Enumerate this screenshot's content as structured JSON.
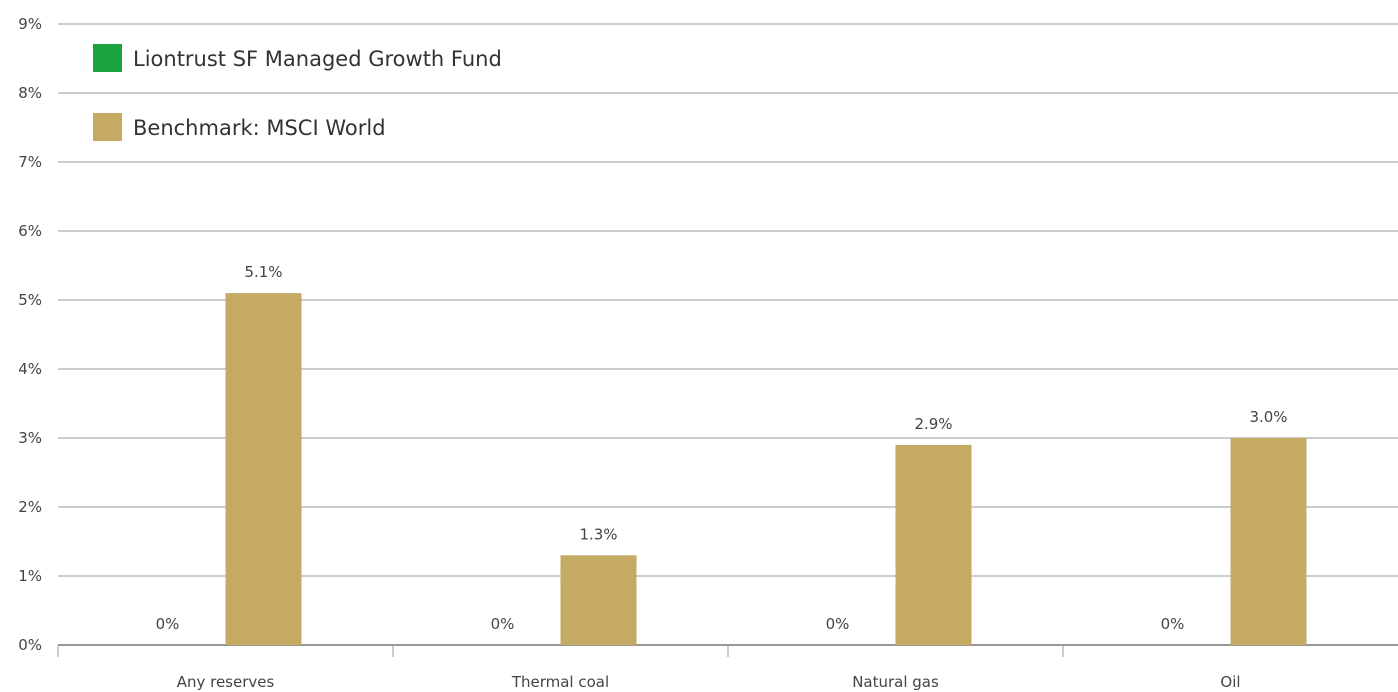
{
  "chart_data": {
    "type": "bar",
    "categories": [
      "Any reserves",
      "Thermal coal",
      "Natural gas",
      "Oil"
    ],
    "series": [
      {
        "name": "Liontrust SF Managed Growth Fund",
        "color": "#1aa33f",
        "values": [
          0,
          0,
          0,
          0
        ],
        "labels": [
          "0%",
          "0%",
          "0%",
          "0%"
        ]
      },
      {
        "name": "Benchmark: MSCI World",
        "color": "#c4aa62",
        "values": [
          5.1,
          1.3,
          2.9,
          3.0
        ],
        "labels": [
          "5.1%",
          "1.3%",
          "2.9%",
          "3.0%"
        ]
      }
    ],
    "yticks": [
      "0%",
      "1%",
      "2%",
      "3%",
      "4%",
      "5%",
      "6%",
      "7%",
      "8%",
      "9%"
    ],
    "ylim": [
      0,
      9
    ],
    "unit": "%",
    "grid": true,
    "legend_position": "top-left"
  }
}
